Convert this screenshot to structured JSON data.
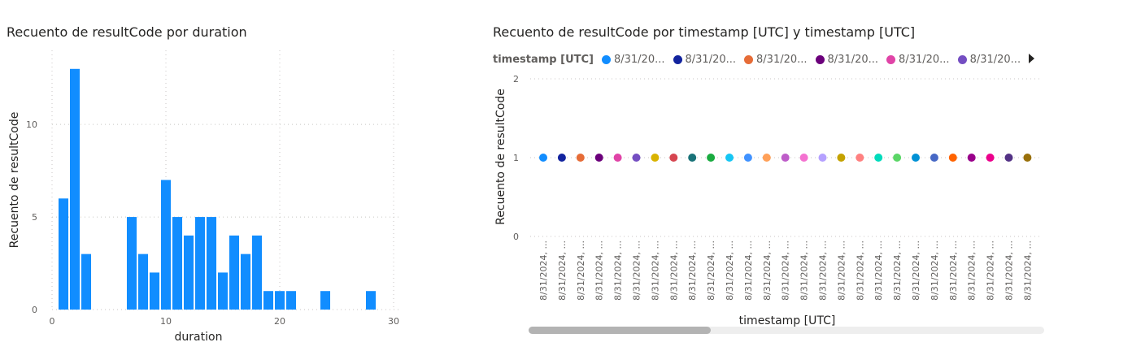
{
  "chart_data": [
    {
      "type": "bar",
      "title": "Recuento de resultCode por duration",
      "xlabel": "duration",
      "ylabel": "Recuento de resultCode",
      "xlim": [
        0,
        30
      ],
      "ylim": [
        0,
        14
      ],
      "xticks": [
        "0",
        "10",
        "20",
        "30"
      ],
      "yticks": [
        "0",
        "5",
        "10"
      ],
      "grid": true,
      "color": "#118DFF",
      "x": [
        1,
        2,
        3,
        7,
        8,
        9,
        10,
        11,
        12,
        13,
        14,
        15,
        16,
        17,
        18,
        19,
        20,
        21,
        24,
        28
      ],
      "values": [
        6,
        13,
        3,
        5,
        3,
        2,
        7,
        5,
        4,
        5,
        5,
        2,
        4,
        3,
        4,
        1,
        1,
        1,
        1,
        1
      ]
    },
    {
      "type": "scatter",
      "title": "Recuento de resultCode por timestamp [UTC] y timestamp [UTC]",
      "xlabel": "timestamp [UTC]",
      "ylabel": "Recuento de resultCode",
      "ylim": [
        0,
        2
      ],
      "yticks": [
        "0",
        "1",
        "2"
      ],
      "grid": true,
      "legend": {
        "title": "timestamp [UTC]",
        "position": "top",
        "items": [
          {
            "label": "8/31/20...",
            "color": "#118DFF"
          },
          {
            "label": "8/31/20...",
            "color": "#12239E"
          },
          {
            "label": "8/31/20...",
            "color": "#E66C37"
          },
          {
            "label": "8/31/20...",
            "color": "#6B007B"
          },
          {
            "label": "8/31/20...",
            "color": "#E044A7"
          },
          {
            "label": "8/31/20...",
            "color": "#744EC2"
          }
        ]
      },
      "categories": [
        "8/31/2024, ...",
        "8/31/2024, ...",
        "8/31/2024, ...",
        "8/31/2024, ...",
        "8/31/2024, ...",
        "8/31/2024, ...",
        "8/31/2024, ...",
        "8/31/2024, ...",
        "8/31/2024, ...",
        "8/31/2024, ...",
        "8/31/2024, ...",
        "8/31/2024, ...",
        "8/31/2024, ...",
        "8/31/2024, ...",
        "8/31/2024, ...",
        "8/31/2024, ...",
        "8/31/2024, ...",
        "8/31/2024, ...",
        "8/31/2024, ...",
        "8/31/2024, ...",
        "8/31/2024, ...",
        "8/31/2024, ...",
        "8/31/2024, ...",
        "8/31/2024, ...",
        "8/31/2024, ...",
        "8/31/2024, ...",
        "8/31/2024, ..."
      ],
      "values": [
        1,
        1,
        1,
        1,
        1,
        1,
        1,
        1,
        1,
        1,
        1,
        1,
        1,
        1,
        1,
        1,
        1,
        1,
        1,
        1,
        1,
        1,
        1,
        1,
        1,
        1,
        1
      ],
      "colors": [
        "#118DFF",
        "#12239E",
        "#E66C37",
        "#6B007B",
        "#E044A7",
        "#744EC2",
        "#D9B300",
        "#D64550",
        "#197278",
        "#1AAB40",
        "#15C6F4",
        "#4092FF",
        "#FFA058",
        "#BE5DC9",
        "#F472D0",
        "#B5A1FF",
        "#C4A200",
        "#FF8080",
        "#00DBBC",
        "#5BD667",
        "#0091D5",
        "#4668C5",
        "#FF6300",
        "#99008A",
        "#EC008C",
        "#533285",
        "#99700A"
      ]
    }
  ]
}
